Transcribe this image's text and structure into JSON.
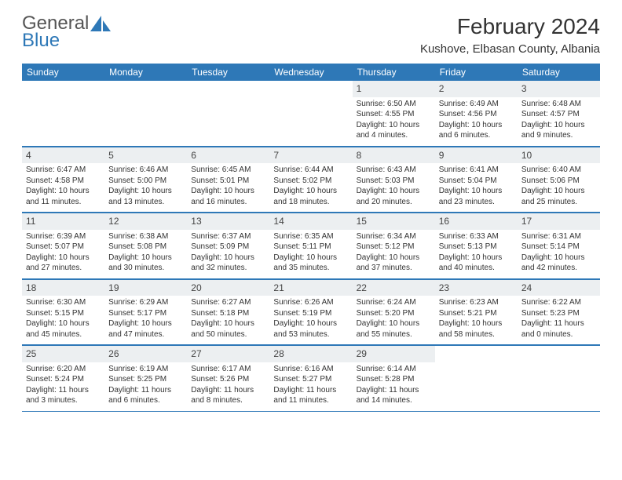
{
  "logo": {
    "text_top": "General",
    "text_bottom": "Blue"
  },
  "title": "February 2024",
  "location": "Kushove, Elbasan County, Albania",
  "weekdays": [
    "Sunday",
    "Monday",
    "Tuesday",
    "Wednesday",
    "Thursday",
    "Friday",
    "Saturday"
  ],
  "colors": {
    "brand": "#2e78b7",
    "header_bg": "#2e78b7",
    "daynum_bg": "#eceff1",
    "text": "#333333"
  },
  "weeks": [
    [
      {
        "day": "",
        "sunrise": "",
        "sunset": "",
        "daylight1": "",
        "daylight2": ""
      },
      {
        "day": "",
        "sunrise": "",
        "sunset": "",
        "daylight1": "",
        "daylight2": ""
      },
      {
        "day": "",
        "sunrise": "",
        "sunset": "",
        "daylight1": "",
        "daylight2": ""
      },
      {
        "day": "",
        "sunrise": "",
        "sunset": "",
        "daylight1": "",
        "daylight2": ""
      },
      {
        "day": "1",
        "sunrise": "Sunrise: 6:50 AM",
        "sunset": "Sunset: 4:55 PM",
        "daylight1": "Daylight: 10 hours",
        "daylight2": "and 4 minutes."
      },
      {
        "day": "2",
        "sunrise": "Sunrise: 6:49 AM",
        "sunset": "Sunset: 4:56 PM",
        "daylight1": "Daylight: 10 hours",
        "daylight2": "and 6 minutes."
      },
      {
        "day": "3",
        "sunrise": "Sunrise: 6:48 AM",
        "sunset": "Sunset: 4:57 PM",
        "daylight1": "Daylight: 10 hours",
        "daylight2": "and 9 minutes."
      }
    ],
    [
      {
        "day": "4",
        "sunrise": "Sunrise: 6:47 AM",
        "sunset": "Sunset: 4:58 PM",
        "daylight1": "Daylight: 10 hours",
        "daylight2": "and 11 minutes."
      },
      {
        "day": "5",
        "sunrise": "Sunrise: 6:46 AM",
        "sunset": "Sunset: 5:00 PM",
        "daylight1": "Daylight: 10 hours",
        "daylight2": "and 13 minutes."
      },
      {
        "day": "6",
        "sunrise": "Sunrise: 6:45 AM",
        "sunset": "Sunset: 5:01 PM",
        "daylight1": "Daylight: 10 hours",
        "daylight2": "and 16 minutes."
      },
      {
        "day": "7",
        "sunrise": "Sunrise: 6:44 AM",
        "sunset": "Sunset: 5:02 PM",
        "daylight1": "Daylight: 10 hours",
        "daylight2": "and 18 minutes."
      },
      {
        "day": "8",
        "sunrise": "Sunrise: 6:43 AM",
        "sunset": "Sunset: 5:03 PM",
        "daylight1": "Daylight: 10 hours",
        "daylight2": "and 20 minutes."
      },
      {
        "day": "9",
        "sunrise": "Sunrise: 6:41 AM",
        "sunset": "Sunset: 5:04 PM",
        "daylight1": "Daylight: 10 hours",
        "daylight2": "and 23 minutes."
      },
      {
        "day": "10",
        "sunrise": "Sunrise: 6:40 AM",
        "sunset": "Sunset: 5:06 PM",
        "daylight1": "Daylight: 10 hours",
        "daylight2": "and 25 minutes."
      }
    ],
    [
      {
        "day": "11",
        "sunrise": "Sunrise: 6:39 AM",
        "sunset": "Sunset: 5:07 PM",
        "daylight1": "Daylight: 10 hours",
        "daylight2": "and 27 minutes."
      },
      {
        "day": "12",
        "sunrise": "Sunrise: 6:38 AM",
        "sunset": "Sunset: 5:08 PM",
        "daylight1": "Daylight: 10 hours",
        "daylight2": "and 30 minutes."
      },
      {
        "day": "13",
        "sunrise": "Sunrise: 6:37 AM",
        "sunset": "Sunset: 5:09 PM",
        "daylight1": "Daylight: 10 hours",
        "daylight2": "and 32 minutes."
      },
      {
        "day": "14",
        "sunrise": "Sunrise: 6:35 AM",
        "sunset": "Sunset: 5:11 PM",
        "daylight1": "Daylight: 10 hours",
        "daylight2": "and 35 minutes."
      },
      {
        "day": "15",
        "sunrise": "Sunrise: 6:34 AM",
        "sunset": "Sunset: 5:12 PM",
        "daylight1": "Daylight: 10 hours",
        "daylight2": "and 37 minutes."
      },
      {
        "day": "16",
        "sunrise": "Sunrise: 6:33 AM",
        "sunset": "Sunset: 5:13 PM",
        "daylight1": "Daylight: 10 hours",
        "daylight2": "and 40 minutes."
      },
      {
        "day": "17",
        "sunrise": "Sunrise: 6:31 AM",
        "sunset": "Sunset: 5:14 PM",
        "daylight1": "Daylight: 10 hours",
        "daylight2": "and 42 minutes."
      }
    ],
    [
      {
        "day": "18",
        "sunrise": "Sunrise: 6:30 AM",
        "sunset": "Sunset: 5:15 PM",
        "daylight1": "Daylight: 10 hours",
        "daylight2": "and 45 minutes."
      },
      {
        "day": "19",
        "sunrise": "Sunrise: 6:29 AM",
        "sunset": "Sunset: 5:17 PM",
        "daylight1": "Daylight: 10 hours",
        "daylight2": "and 47 minutes."
      },
      {
        "day": "20",
        "sunrise": "Sunrise: 6:27 AM",
        "sunset": "Sunset: 5:18 PM",
        "daylight1": "Daylight: 10 hours",
        "daylight2": "and 50 minutes."
      },
      {
        "day": "21",
        "sunrise": "Sunrise: 6:26 AM",
        "sunset": "Sunset: 5:19 PM",
        "daylight1": "Daylight: 10 hours",
        "daylight2": "and 53 minutes."
      },
      {
        "day": "22",
        "sunrise": "Sunrise: 6:24 AM",
        "sunset": "Sunset: 5:20 PM",
        "daylight1": "Daylight: 10 hours",
        "daylight2": "and 55 minutes."
      },
      {
        "day": "23",
        "sunrise": "Sunrise: 6:23 AM",
        "sunset": "Sunset: 5:21 PM",
        "daylight1": "Daylight: 10 hours",
        "daylight2": "and 58 minutes."
      },
      {
        "day": "24",
        "sunrise": "Sunrise: 6:22 AM",
        "sunset": "Sunset: 5:23 PM",
        "daylight1": "Daylight: 11 hours",
        "daylight2": "and 0 minutes."
      }
    ],
    [
      {
        "day": "25",
        "sunrise": "Sunrise: 6:20 AM",
        "sunset": "Sunset: 5:24 PM",
        "daylight1": "Daylight: 11 hours",
        "daylight2": "and 3 minutes."
      },
      {
        "day": "26",
        "sunrise": "Sunrise: 6:19 AM",
        "sunset": "Sunset: 5:25 PM",
        "daylight1": "Daylight: 11 hours",
        "daylight2": "and 6 minutes."
      },
      {
        "day": "27",
        "sunrise": "Sunrise: 6:17 AM",
        "sunset": "Sunset: 5:26 PM",
        "daylight1": "Daylight: 11 hours",
        "daylight2": "and 8 minutes."
      },
      {
        "day": "28",
        "sunrise": "Sunrise: 6:16 AM",
        "sunset": "Sunset: 5:27 PM",
        "daylight1": "Daylight: 11 hours",
        "daylight2": "and 11 minutes."
      },
      {
        "day": "29",
        "sunrise": "Sunrise: 6:14 AM",
        "sunset": "Sunset: 5:28 PM",
        "daylight1": "Daylight: 11 hours",
        "daylight2": "and 14 minutes."
      },
      {
        "day": "",
        "sunrise": "",
        "sunset": "",
        "daylight1": "",
        "daylight2": ""
      },
      {
        "day": "",
        "sunrise": "",
        "sunset": "",
        "daylight1": "",
        "daylight2": ""
      }
    ]
  ]
}
